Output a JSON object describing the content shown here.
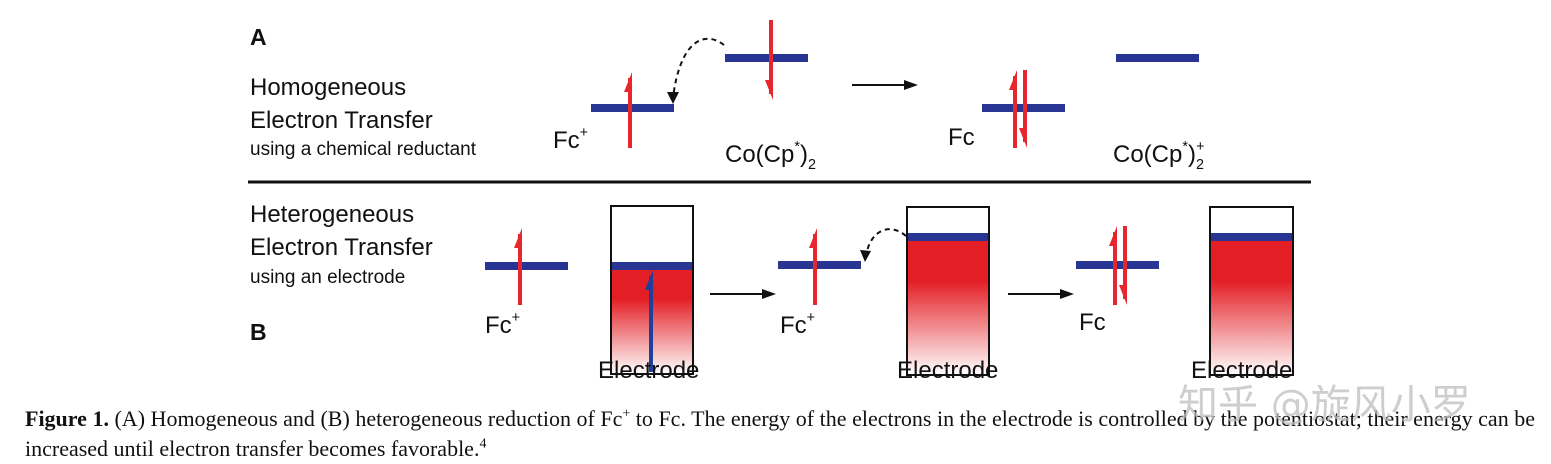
{
  "panel_a": {
    "label": "A",
    "title": [
      "Homogeneous",
      "Electron Transfer"
    ],
    "subtitle": "using a chemical reductant",
    "species": [
      [
        {
          "text": "Fc"
        },
        {
          "text": "+",
          "script": "sup"
        }
      ],
      [
        {
          "text": "Co(Cp"
        },
        {
          "text": "*",
          "script": "sup"
        },
        {
          "text": ")"
        },
        {
          "text": "2",
          "script": "sub"
        }
      ],
      [
        {
          "text": "Fc"
        }
      ],
      [
        {
          "text": "Co(Cp"
        },
        {
          "text": "*",
          "script": "sup"
        },
        {
          "text": ")"
        },
        {
          "text": "2",
          "script": "sub"
        },
        {
          "text": "+",
          "script": "sup"
        }
      ]
    ]
  },
  "panel_b": {
    "label": "B",
    "title": [
      "Heterogeneous",
      "Electron Transfer"
    ],
    "subtitle": "using an electrode",
    "species": [
      [
        {
          "text": "Fc"
        },
        {
          "text": "+",
          "script": "sup"
        }
      ],
      [
        {
          "text": "Fc"
        },
        {
          "text": "+",
          "script": "sup"
        }
      ],
      [
        {
          "text": "Fc"
        }
      ]
    ],
    "electrodes": [
      "Electrode",
      "Electrode",
      "Electrode"
    ]
  },
  "caption": {
    "label": "Figure 1.",
    "segments": [
      {
        "text": " (A) Homogeneous and (B) heterogeneous reduction of Fc"
      },
      {
        "text": "+",
        "script": "sup"
      },
      {
        "text": " to Fc. The energy of the electrons in the electrode is controlled by the potentiostat; their energy can be increased until electron transfer becomes favorable."
      },
      {
        "text": "4",
        "script": "sup"
      }
    ]
  },
  "watermark": "知乎 @旋风小罗"
}
